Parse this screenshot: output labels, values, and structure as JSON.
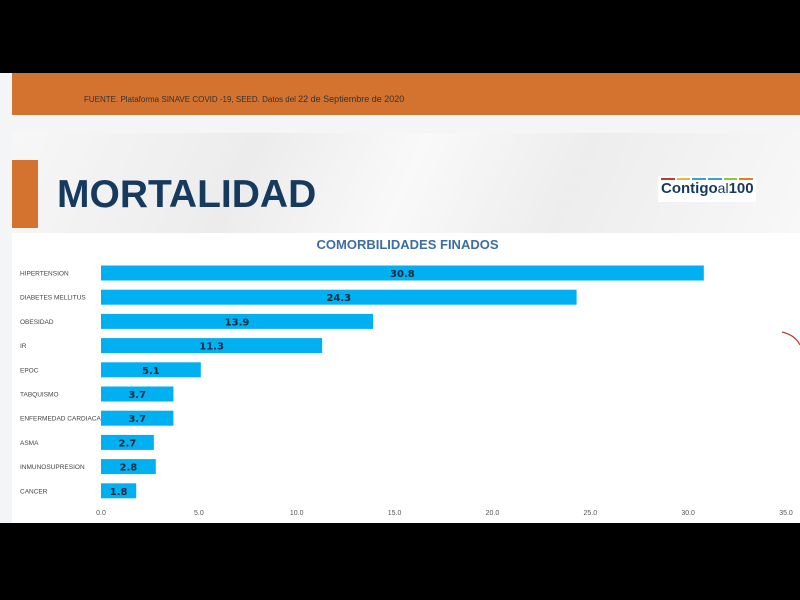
{
  "source_text": "FUENTE. Plataforma SINAVE COVID -19, SEED. Datos del",
  "source_date": "22 de Septiembre de 2020",
  "page_title": "MORTALIDAD",
  "logo": {
    "main": "Contigo",
    "small": "al",
    "num": "100",
    "colors": [
      "#c0392b",
      "#e5b83b",
      "#3aa0d8",
      "#3aa0d8",
      "#8cc63f",
      "#e67e22"
    ]
  },
  "colors": {
    "orange": "#d4732f",
    "bar": "#00b0f0",
    "navy": "#163a5e"
  },
  "chart_data": {
    "type": "bar",
    "orientation": "horizontal",
    "title": "COMORBILIDADES FINADOS",
    "categories": [
      "HIPERTENSION",
      "DIABETES MELLITUS",
      "OBESIDAD",
      "IR",
      "EPOC",
      "TABQUISMO",
      "ENFERMEDAD CARDIACA",
      "ASMA",
      "INMUNOSUPRESION",
      "CANCER"
    ],
    "values": [
      30.8,
      24.3,
      13.9,
      11.3,
      5.1,
      3.7,
      3.7,
      2.7,
      2.8,
      1.8
    ],
    "value_labels": [
      "30.8",
      "24.3",
      "13.9",
      "11.3",
      "5.1",
      "3.7",
      "3.7",
      "2.7",
      "2.8",
      "1.8"
    ],
    "xlim": [
      0,
      35
    ],
    "xticks": [
      "0.0",
      "5.0",
      "10.0",
      "15.0",
      "20.0",
      "25.0",
      "30.0",
      "35.0"
    ],
    "xlabel": "",
    "ylabel": "",
    "grid": false
  }
}
